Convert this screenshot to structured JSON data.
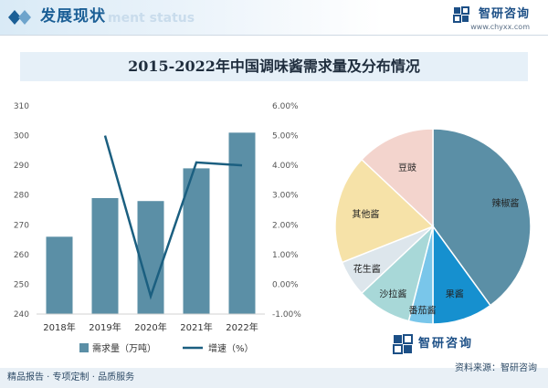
{
  "header": {
    "title": "发展现状",
    "ghost_text": "ment status"
  },
  "brand": {
    "name": "智研咨询",
    "url": "www.chyxx.com"
  },
  "colors": {
    "bar": "#5b8fa6",
    "line": "#1b5f80",
    "accent": "#1b5f96"
  },
  "chart_data": [
    {
      "type": "bar",
      "title": "2015-2022年中国调味酱需求量及分布情况",
      "categories": [
        "2018年",
        "2019年",
        "2020年",
        "2021年",
        "2022年"
      ],
      "series": [
        {
          "name": "需求量（万吨）",
          "type": "bar",
          "axis": "left",
          "values": [
            266,
            279,
            278,
            289,
            301
          ]
        },
        {
          "name": "增速（%）",
          "type": "line",
          "axis": "right",
          "values": [
            null,
            5.0,
            -0.4,
            4.1,
            4.0
          ]
        }
      ],
      "ylim_left": [
        240,
        310
      ],
      "yticks_left": [
        "310",
        "300",
        "290",
        "280",
        "270",
        "260",
        "250",
        "240"
      ],
      "ylim_right": [
        -1.0,
        6.0
      ],
      "yticks_right": [
        "6.00%",
        "5.00%",
        "4.00%",
        "3.00%",
        "2.00%",
        "1.00%",
        "0.00%",
        "-1.00%"
      ],
      "legend_position": "bottom",
      "grid": false
    },
    {
      "type": "pie",
      "slices": [
        {
          "label": "辣椒酱",
          "value": 40,
          "color": "#5b8fa6"
        },
        {
          "label": "果酱",
          "value": 10,
          "color": "#1690cf"
        },
        {
          "label": "番茄酱",
          "value": 4,
          "color": "#79c6ea"
        },
        {
          "label": "沙拉酱",
          "value": 9,
          "color": "#a8d8d8"
        },
        {
          "label": "花生酱",
          "value": 6,
          "color": "#dde6ec"
        },
        {
          "label": "其他酱",
          "value": 18,
          "color": "#f6e2a8"
        },
        {
          "label": "豆豉",
          "value": 13,
          "color": "#f3d4cd"
        }
      ]
    }
  ],
  "source": "资料来源：智研咨询",
  "footer": {
    "text": "精品报告 · 专项定制 · 品质服务"
  }
}
